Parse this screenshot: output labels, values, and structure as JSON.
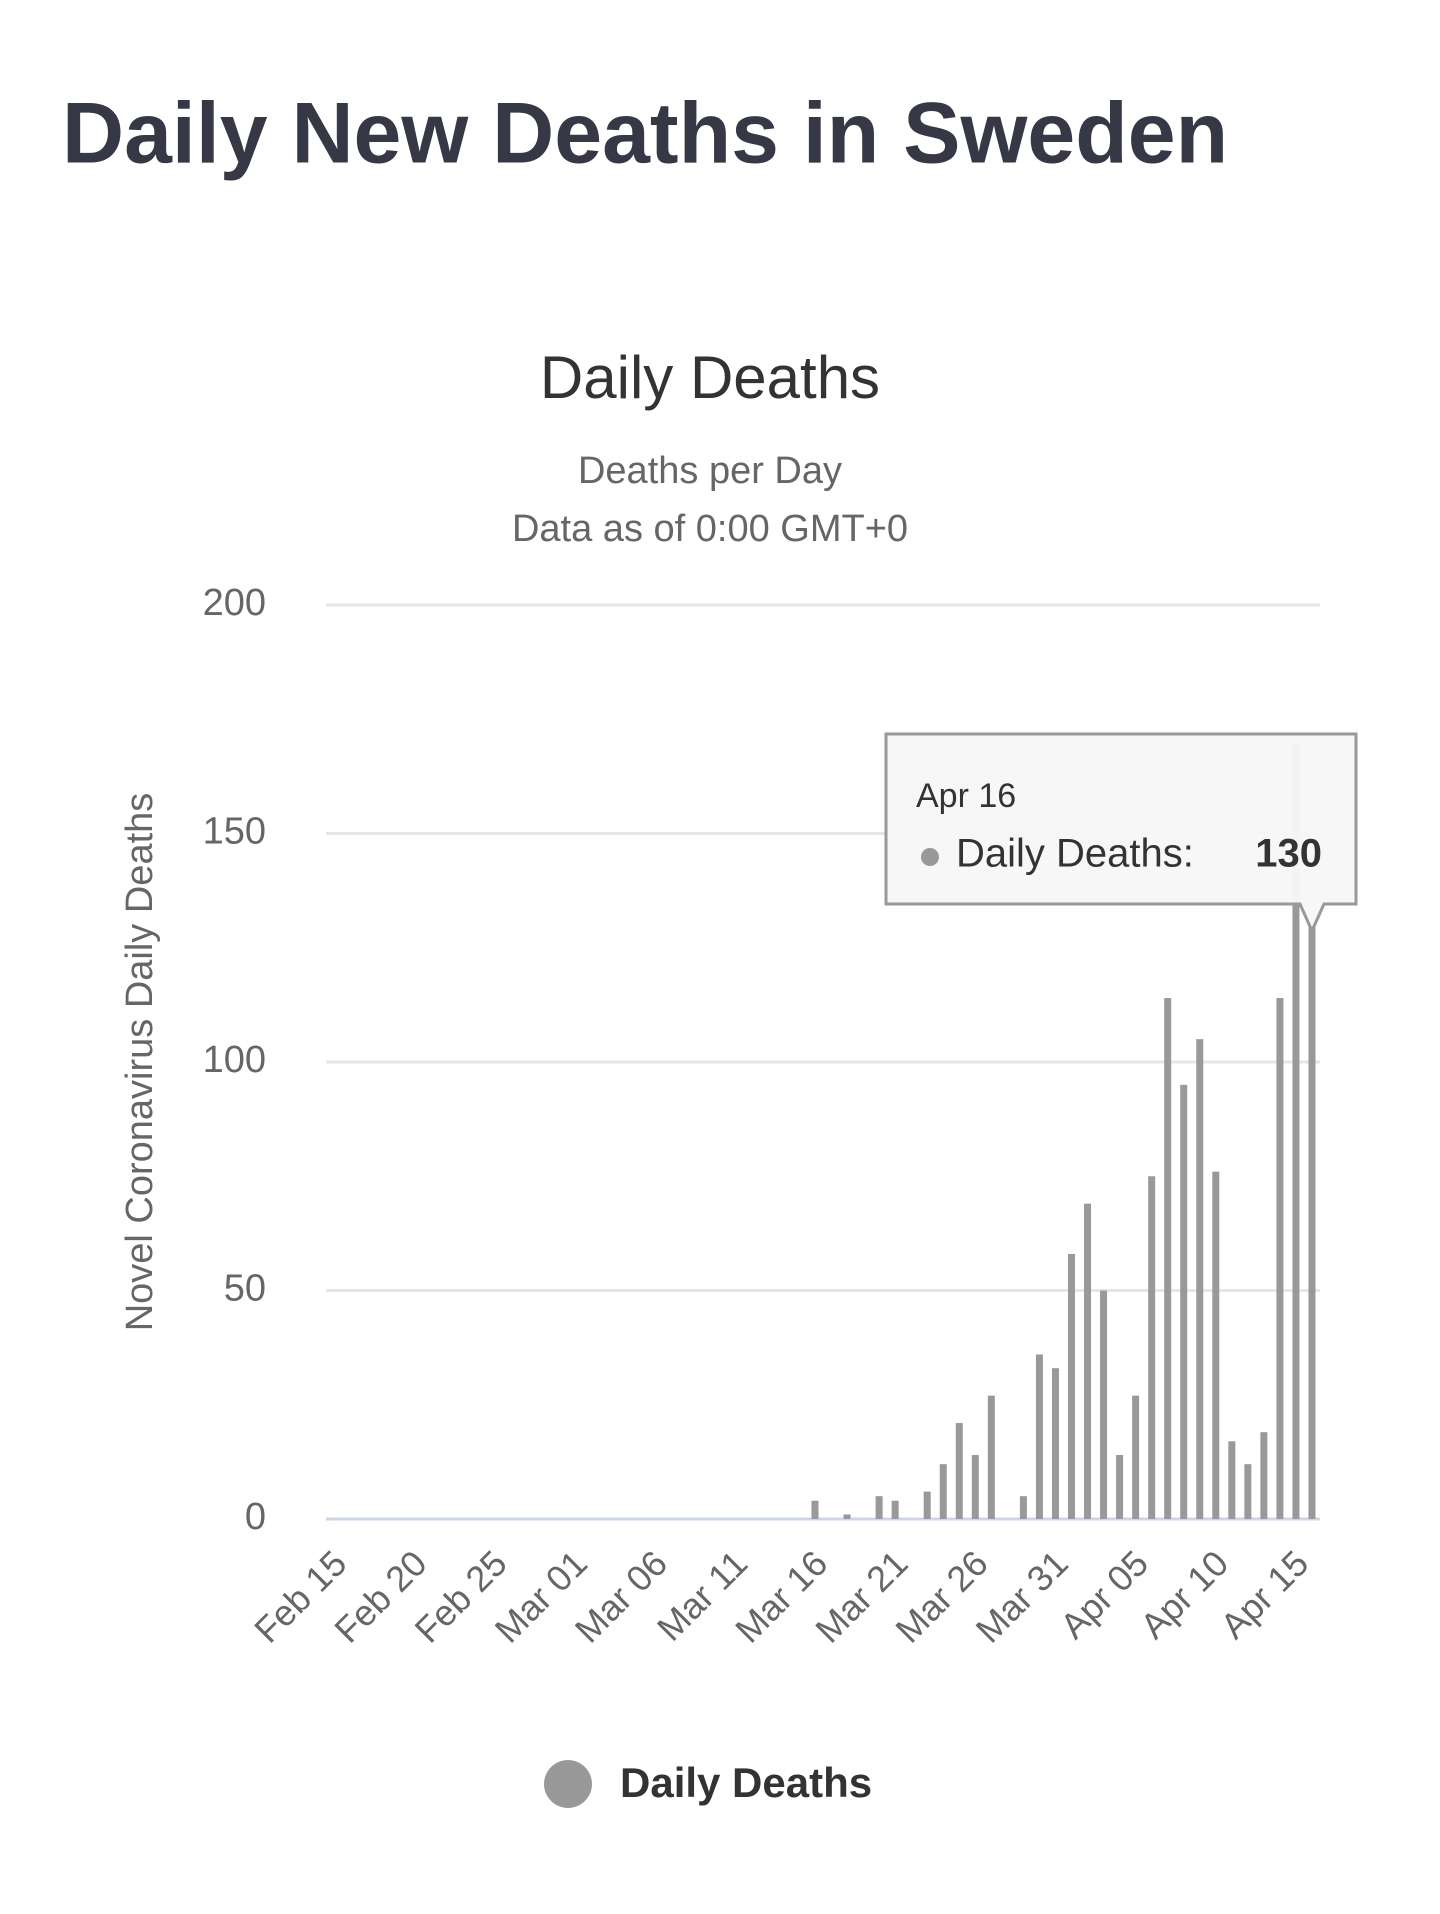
{
  "header": {
    "title": "Daily New Deaths in Sweden"
  },
  "chart_data": {
    "type": "bar",
    "title": "Daily Deaths",
    "subtitle": [
      "Deaths per Day",
      "Data as of 0:00 GMT+0"
    ],
    "y_label": "Novel Coronavirus Daily Deaths",
    "categories": [
      "Feb 15",
      null,
      null,
      null,
      null,
      "Feb 20",
      null,
      null,
      null,
      null,
      "Feb 25",
      null,
      null,
      null,
      null,
      "Mar 01",
      null,
      null,
      null,
      null,
      "Mar 06",
      null,
      null,
      null,
      null,
      "Mar 11",
      null,
      null,
      null,
      null,
      "Mar 16",
      null,
      null,
      null,
      null,
      "Mar 21",
      null,
      null,
      null,
      null,
      "Mar 26",
      null,
      null,
      null,
      null,
      "Mar 31",
      null,
      null,
      null,
      null,
      "Apr 05",
      null,
      null,
      null,
      null,
      "Apr 10",
      null,
      null,
      null,
      null,
      "Apr 15",
      "Apr 16"
    ],
    "series": [
      {
        "name": "Daily Deaths",
        "color": "#999999",
        "values": [
          0,
          0,
          0,
          0,
          0,
          0,
          0,
          0,
          0,
          0,
          0,
          0,
          0,
          0,
          0,
          0,
          0,
          0,
          0,
          0,
          0,
          0,
          0,
          0,
          0,
          0,
          0,
          0,
          0,
          0,
          4,
          0,
          1,
          0,
          5,
          4,
          0,
          6,
          12,
          21,
          14,
          27,
          0,
          5,
          36,
          33,
          58,
          69,
          50,
          14,
          27,
          75,
          114,
          95,
          105,
          76,
          17,
          12,
          19,
          114,
          170,
          130
        ]
      }
    ],
    "ylim": [
      0,
      200
    ],
    "yticks": [
      0,
      50,
      100,
      150,
      200
    ],
    "grid": true,
    "tooltip": {
      "index": 61,
      "label": "Daily Deaths:"
    }
  }
}
